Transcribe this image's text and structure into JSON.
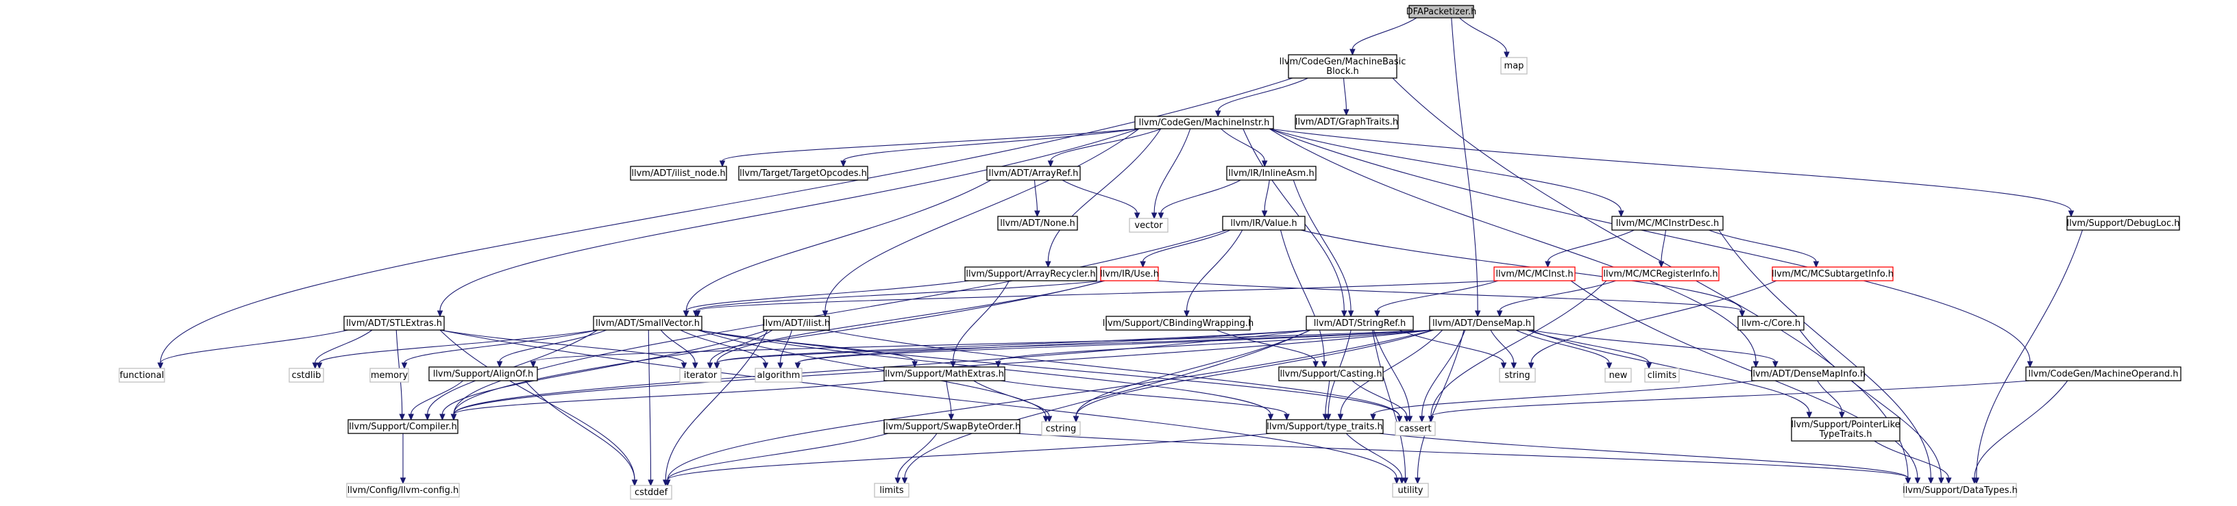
{
  "colors": {
    "edge": "#191970",
    "root_fill": "#bfbfbf",
    "root_border": "#000000",
    "documented_border": "#000000",
    "undocumented_border": "#ff0000",
    "external_border": "#bfbfbf",
    "external_text": "#404040"
  },
  "nodes": [
    {
      "id": "dfa",
      "lines": [
        "DFAPacketizer.h"
      ],
      "kind": "root"
    },
    {
      "id": "mbb",
      "lines": [
        "llvm/CodeGen/MachineBasic",
        "Block.h"
      ],
      "kind": "doc"
    },
    {
      "id": "map",
      "lines": [
        "map"
      ],
      "kind": "ext"
    },
    {
      "id": "mi",
      "lines": [
        "llvm/CodeGen/MachineInstr.h"
      ],
      "kind": "doc"
    },
    {
      "id": "graphtraits",
      "lines": [
        "llvm/ADT/GraphTraits.h"
      ],
      "kind": "doc"
    },
    {
      "id": "ilistnode",
      "lines": [
        "llvm/ADT/ilist_node.h"
      ],
      "kind": "doc"
    },
    {
      "id": "targetopcodes",
      "lines": [
        "llvm/Target/TargetOpcodes.h"
      ],
      "kind": "doc"
    },
    {
      "id": "arrayref",
      "lines": [
        "llvm/ADT/ArrayRef.h"
      ],
      "kind": "doc"
    },
    {
      "id": "inlineasm",
      "lines": [
        "llvm/IR/InlineAsm.h"
      ],
      "kind": "doc"
    },
    {
      "id": "debugloc",
      "lines": [
        "llvm/Support/DebugLoc.h"
      ],
      "kind": "doc"
    },
    {
      "id": "none",
      "lines": [
        "llvm/ADT/None.h"
      ],
      "kind": "doc"
    },
    {
      "id": "vector",
      "lines": [
        "vector"
      ],
      "kind": "ext"
    },
    {
      "id": "value",
      "lines": [
        "llvm/IR/Value.h"
      ],
      "kind": "doc"
    },
    {
      "id": "mcinstrdesc",
      "lines": [
        "llvm/MC/MCInstrDesc.h"
      ],
      "kind": "doc"
    },
    {
      "id": "arrayrecycler",
      "lines": [
        "llvm/Support/ArrayRecycler.h"
      ],
      "kind": "doc"
    },
    {
      "id": "use",
      "lines": [
        "llvm/IR/Use.h"
      ],
      "kind": "undoc"
    },
    {
      "id": "mcinst",
      "lines": [
        "llvm/MC/MCInst.h"
      ],
      "kind": "undoc"
    },
    {
      "id": "mcreginfo",
      "lines": [
        "llvm/MC/MCRegisterInfo.h"
      ],
      "kind": "undoc"
    },
    {
      "id": "mcsubtarget",
      "lines": [
        "llvm/MC/MCSubtargetInfo.h"
      ],
      "kind": "undoc"
    },
    {
      "id": "stlextras",
      "lines": [
        "llvm/ADT/STLExtras.h"
      ],
      "kind": "doc"
    },
    {
      "id": "smallvector",
      "lines": [
        "llvm/ADT/SmallVector.h"
      ],
      "kind": "doc"
    },
    {
      "id": "ilist",
      "lines": [
        "llvm/ADT/ilist.h"
      ],
      "kind": "doc"
    },
    {
      "id": "cbinding",
      "lines": [
        "llvm/Support/CBindingWrapping.h"
      ],
      "kind": "doc"
    },
    {
      "id": "stringref",
      "lines": [
        "llvm/ADT/StringRef.h"
      ],
      "kind": "doc"
    },
    {
      "id": "densemap",
      "lines": [
        "llvm/ADT/DenseMap.h"
      ],
      "kind": "doc"
    },
    {
      "id": "llvmccore",
      "lines": [
        "llvm-c/Core.h"
      ],
      "kind": "doc"
    },
    {
      "id": "functional",
      "lines": [
        "functional"
      ],
      "kind": "ext"
    },
    {
      "id": "cstdlib",
      "lines": [
        "cstdlib"
      ],
      "kind": "ext"
    },
    {
      "id": "memory",
      "lines": [
        "memory"
      ],
      "kind": "ext"
    },
    {
      "id": "alignof",
      "lines": [
        "llvm/Support/AlignOf.h"
      ],
      "kind": "doc"
    },
    {
      "id": "iterator",
      "lines": [
        "iterator"
      ],
      "kind": "ext"
    },
    {
      "id": "algorithm",
      "lines": [
        "algorithm"
      ],
      "kind": "ext"
    },
    {
      "id": "mathextras",
      "lines": [
        "llvm/Support/MathExtras.h"
      ],
      "kind": "doc"
    },
    {
      "id": "casting",
      "lines": [
        "llvm/Support/Casting.h"
      ],
      "kind": "doc"
    },
    {
      "id": "string",
      "lines": [
        "string"
      ],
      "kind": "ext"
    },
    {
      "id": "new",
      "lines": [
        "new"
      ],
      "kind": "ext"
    },
    {
      "id": "climits",
      "lines": [
        "climits"
      ],
      "kind": "ext"
    },
    {
      "id": "densemapinfo",
      "lines": [
        "llvm/ADT/DenseMapInfo.h"
      ],
      "kind": "doc"
    },
    {
      "id": "machineoperand",
      "lines": [
        "llvm/CodeGen/MachineOperand.h"
      ],
      "kind": "doc"
    },
    {
      "id": "compiler",
      "lines": [
        "llvm/Support/Compiler.h"
      ],
      "kind": "doc"
    },
    {
      "id": "cstring",
      "lines": [
        "cstring"
      ],
      "kind": "ext"
    },
    {
      "id": "swapbyteorder",
      "lines": [
        "llvm/Support/SwapByteOrder.h"
      ],
      "kind": "doc"
    },
    {
      "id": "typetraits",
      "lines": [
        "llvm/Support/type_traits.h"
      ],
      "kind": "doc"
    },
    {
      "id": "cassert",
      "lines": [
        "cassert"
      ],
      "kind": "ext"
    },
    {
      "id": "pointerlike",
      "lines": [
        "llvm/Support/PointerLike",
        "TypeTraits.h"
      ],
      "kind": "doc"
    },
    {
      "id": "llvmconfig",
      "lines": [
        "llvm/Config/llvm-config.h"
      ],
      "kind": "ext"
    },
    {
      "id": "cstddef",
      "lines": [
        "cstddef"
      ],
      "kind": "ext"
    },
    {
      "id": "limits",
      "lines": [
        "limits"
      ],
      "kind": "ext"
    },
    {
      "id": "utility",
      "lines": [
        "utility"
      ],
      "kind": "ext"
    },
    {
      "id": "datatypes",
      "lines": [
        "llvm/Support/DataTypes.h"
      ],
      "kind": "ext"
    }
  ],
  "edges": [
    [
      "dfa",
      "mbb"
    ],
    [
      "dfa",
      "map"
    ],
    [
      "dfa",
      "densemap"
    ],
    [
      "mbb",
      "mi"
    ],
    [
      "mbb",
      "graphtraits"
    ],
    [
      "mbb",
      "functional"
    ],
    [
      "mbb",
      "datatypes"
    ],
    [
      "mi",
      "ilistnode"
    ],
    [
      "mi",
      "targetopcodes"
    ],
    [
      "mi",
      "arrayref"
    ],
    [
      "mi",
      "inlineasm"
    ],
    [
      "mi",
      "debugloc"
    ],
    [
      "mi",
      "vector"
    ],
    [
      "mi",
      "mcinstrdesc"
    ],
    [
      "mi",
      "arrayrecycler"
    ],
    [
      "mi",
      "stlextras"
    ],
    [
      "mi",
      "ilist"
    ],
    [
      "mi",
      "stringref"
    ],
    [
      "mi",
      "densemapinfo"
    ],
    [
      "mi",
      "machineoperand"
    ],
    [
      "arrayref",
      "none"
    ],
    [
      "arrayref",
      "vector"
    ],
    [
      "arrayref",
      "smallvector"
    ],
    [
      "inlineasm",
      "value"
    ],
    [
      "inlineasm",
      "vector"
    ],
    [
      "inlineasm",
      "stringref"
    ],
    [
      "value",
      "use"
    ],
    [
      "value",
      "cbinding"
    ],
    [
      "value",
      "casting"
    ],
    [
      "value",
      "compiler"
    ],
    [
      "value",
      "llvmccore"
    ],
    [
      "mcinstrdesc",
      "mcinst"
    ],
    [
      "mcinstrdesc",
      "mcreginfo"
    ],
    [
      "mcinstrdesc",
      "mcsubtarget"
    ],
    [
      "mcinstrdesc",
      "datatypes"
    ],
    [
      "arrayrecycler",
      "smallvector"
    ],
    [
      "arrayrecycler",
      "mathextras"
    ],
    [
      "use",
      "smallvector"
    ],
    [
      "use",
      "compiler"
    ],
    [
      "use",
      "llvmccore"
    ],
    [
      "use",
      "iterator"
    ],
    [
      "mcinst",
      "smallvector"
    ],
    [
      "mcinst",
      "stringref"
    ],
    [
      "mcinst",
      "datatypes"
    ],
    [
      "mcreginfo",
      "densemap"
    ],
    [
      "mcreginfo",
      "cassert"
    ],
    [
      "mcsubtarget",
      "string"
    ],
    [
      "stlextras",
      "functional"
    ],
    [
      "stlextras",
      "cstdlib"
    ],
    [
      "stlextras",
      "compiler"
    ],
    [
      "stlextras",
      "iterator"
    ],
    [
      "stlextras",
      "utility"
    ],
    [
      "stlextras",
      "cstddef"
    ],
    [
      "smallvector",
      "cstdlib"
    ],
    [
      "smallvector",
      "memory"
    ],
    [
      "smallvector",
      "alignof"
    ],
    [
      "smallvector",
      "iterator"
    ],
    [
      "smallvector",
      "algorithm"
    ],
    [
      "smallvector",
      "mathextras"
    ],
    [
      "smallvector",
      "compiler"
    ],
    [
      "smallvector",
      "cstring"
    ],
    [
      "smallvector",
      "typetraits"
    ],
    [
      "smallvector",
      "cassert"
    ],
    [
      "smallvector",
      "cstddef"
    ],
    [
      "ilist",
      "iterator"
    ],
    [
      "ilist",
      "algorithm"
    ],
    [
      "ilist",
      "compiler"
    ],
    [
      "ilist",
      "cassert"
    ],
    [
      "ilist",
      "cstddef"
    ],
    [
      "cbinding",
      "casting"
    ],
    [
      "stringref",
      "iterator"
    ],
    [
      "stringref",
      "algorithm"
    ],
    [
      "stringref",
      "compiler"
    ],
    [
      "stringref",
      "typetraits"
    ],
    [
      "stringref",
      "cassert"
    ],
    [
      "stringref",
      "cstring"
    ],
    [
      "stringref",
      "limits"
    ],
    [
      "stringref",
      "string"
    ],
    [
      "stringref",
      "utility"
    ],
    [
      "densemap",
      "iterator"
    ],
    [
      "densemap",
      "algorithm"
    ],
    [
      "densemap",
      "alignof"
    ],
    [
      "densemap",
      "mathextras"
    ],
    [
      "densemap",
      "compiler"
    ],
    [
      "densemap",
      "typetraits"
    ],
    [
      "densemap",
      "densemapinfo"
    ],
    [
      "densemap",
      "pointerlike"
    ],
    [
      "densemap",
      "string"
    ],
    [
      "densemap",
      "new"
    ],
    [
      "densemap",
      "climits"
    ],
    [
      "densemap",
      "cassert"
    ],
    [
      "densemap",
      "cstddef"
    ],
    [
      "densemap",
      "utility"
    ],
    [
      "densemap",
      "cstring"
    ],
    [
      "llvmccore",
      "datatypes"
    ],
    [
      "alignof",
      "compiler"
    ],
    [
      "alignof",
      "cstddef"
    ],
    [
      "mathextras",
      "compiler"
    ],
    [
      "mathextras",
      "swapbyteorder"
    ],
    [
      "mathextras",
      "typetraits"
    ],
    [
      "mathextras",
      "cstring"
    ],
    [
      "casting",
      "typetraits"
    ],
    [
      "casting",
      "cassert"
    ],
    [
      "densemapinfo",
      "pointerlike"
    ],
    [
      "densemapinfo",
      "typetraits"
    ],
    [
      "machineoperand",
      "cassert"
    ],
    [
      "machineoperand",
      "datatypes"
    ],
    [
      "debugloc",
      "datatypes"
    ],
    [
      "compiler",
      "llvmconfig"
    ],
    [
      "swapbyteorder",
      "limits"
    ],
    [
      "swapbyteorder",
      "cstddef"
    ],
    [
      "swapbyteorder",
      "datatypes"
    ],
    [
      "typetraits",
      "cstddef"
    ],
    [
      "typetraits",
      "utility"
    ],
    [
      "typetraits",
      "datatypes"
    ],
    [
      "pointerlike",
      "datatypes"
    ]
  ]
}
